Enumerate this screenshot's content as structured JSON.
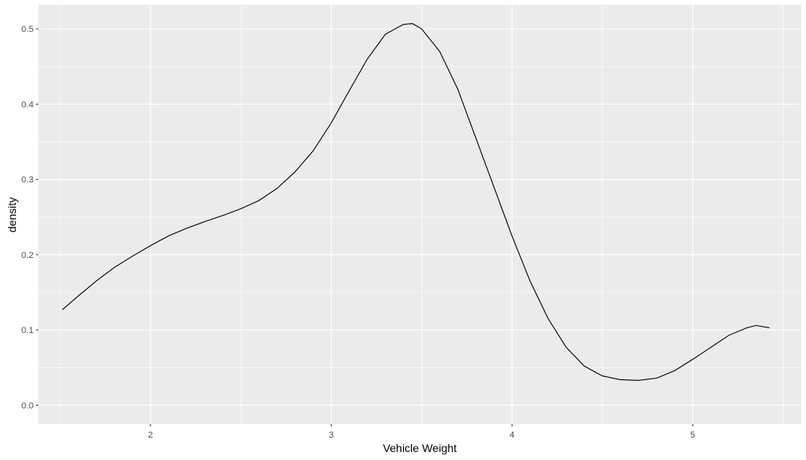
{
  "chart_data": {
    "type": "line",
    "title": "",
    "xlabel": "Vehicle Weight",
    "ylabel": "density",
    "xlim": [
      1.38,
      5.6
    ],
    "ylim": [
      -0.025,
      0.532
    ],
    "x_ticks": [
      2,
      3,
      4,
      5
    ],
    "y_ticks": [
      0.0,
      0.1,
      0.2,
      0.3,
      0.4,
      0.5
    ],
    "y_tick_labels": [
      "0.0",
      "0.1",
      "0.2",
      "0.3",
      "0.4",
      "0.5"
    ],
    "x_minor_ticks": [
      1.5,
      2.5,
      3.5,
      4.5,
      5.5
    ],
    "y_minor_ticks": [
      0.05,
      0.15,
      0.25,
      0.35,
      0.45
    ],
    "grid": true,
    "panel_background": "#ebebeb",
    "grid_color": "#ffffff",
    "line_color": "#000000",
    "series": [
      {
        "x": [
          1.513,
          1.6,
          1.7,
          1.8,
          1.9,
          2.0,
          2.1,
          2.2,
          2.3,
          2.4,
          2.5,
          2.6,
          2.7,
          2.8,
          2.9,
          3.0,
          3.1,
          3.2,
          3.3,
          3.4,
          3.45,
          3.5,
          3.6,
          3.7,
          3.8,
          3.9,
          4.0,
          4.1,
          4.2,
          4.3,
          4.4,
          4.5,
          4.6,
          4.7,
          4.8,
          4.9,
          5.0,
          5.1,
          5.2,
          5.3,
          5.35,
          5.424
        ],
        "y": [
          0.127,
          0.145,
          0.165,
          0.183,
          0.198,
          0.212,
          0.225,
          0.235,
          0.244,
          0.252,
          0.261,
          0.272,
          0.288,
          0.31,
          0.338,
          0.375,
          0.418,
          0.46,
          0.493,
          0.506,
          0.507,
          0.5,
          0.47,
          0.42,
          0.355,
          0.29,
          0.225,
          0.165,
          0.115,
          0.077,
          0.052,
          0.039,
          0.034,
          0.033,
          0.036,
          0.046,
          0.061,
          0.077,
          0.093,
          0.103,
          0.106,
          0.103
        ]
      }
    ]
  }
}
